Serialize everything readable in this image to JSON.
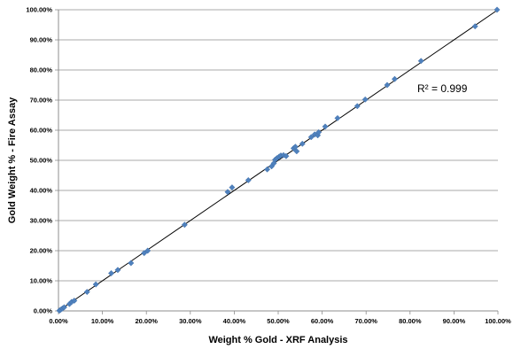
{
  "chart_data": {
    "type": "scatter",
    "title": "",
    "xlabel": "Weight % Gold - XRF Analysis",
    "ylabel": "Gold Weight % - Fire Assay",
    "xlim": [
      0,
      100
    ],
    "ylim": [
      0,
      100
    ],
    "x_ticks": [
      "0.00%",
      "10.00%",
      "20.00%",
      "30.00%",
      "40.00%",
      "50.00%",
      "60.00%",
      "70.00%",
      "80.00%",
      "90.00%",
      "100.00%"
    ],
    "y_ticks": [
      "0.00%",
      "10.00%",
      "20.00%",
      "30.00%",
      "40.00%",
      "50.00%",
      "60.00%",
      "70.00%",
      "80.00%",
      "90.00%",
      "100.00%"
    ],
    "grid": "horizontal",
    "legend": "none",
    "marker_color": "#4f81bd",
    "trendline": {
      "type": "linear",
      "from": [
        0,
        0
      ],
      "to": [
        100,
        100
      ],
      "color": "#000000"
    },
    "annotation": "R² = 0.999",
    "series": [
      {
        "points": [
          [
            0.2,
            0.1
          ],
          [
            0.5,
            0.4
          ],
          [
            0.9,
            0.8
          ],
          [
            1.3,
            1.2
          ],
          [
            2.5,
            2.3
          ],
          [
            3.0,
            3.0
          ],
          [
            3.6,
            3.4
          ],
          [
            6.5,
            6.3
          ],
          [
            8.5,
            8.8
          ],
          [
            12.0,
            12.5
          ],
          [
            13.5,
            13.6
          ],
          [
            16.5,
            15.9
          ],
          [
            19.5,
            19.2
          ],
          [
            20.3,
            20.0
          ],
          [
            28.7,
            28.6
          ],
          [
            38.5,
            39.5
          ],
          [
            39.5,
            41.0
          ],
          [
            43.2,
            43.4
          ],
          [
            47.5,
            47.0
          ],
          [
            48.5,
            48.0
          ],
          [
            49.0,
            49.0
          ],
          [
            49.3,
            50.2
          ],
          [
            49.7,
            50.7
          ],
          [
            50.2,
            51.2
          ],
          [
            50.6,
            51.6
          ],
          [
            51.2,
            51.7
          ],
          [
            51.8,
            51.4
          ],
          [
            53.5,
            54.0
          ],
          [
            53.9,
            54.5
          ],
          [
            54.2,
            53.0
          ],
          [
            55.5,
            55.5
          ],
          [
            57.5,
            57.7
          ],
          [
            58.3,
            58.6
          ],
          [
            59.0,
            58.3
          ],
          [
            59.2,
            59.3
          ],
          [
            60.7,
            61.2
          ],
          [
            63.5,
            64.0
          ],
          [
            68.0,
            68.0
          ],
          [
            69.8,
            70.2
          ],
          [
            74.8,
            75.0
          ],
          [
            76.5,
            77.0
          ],
          [
            82.5,
            83.0
          ],
          [
            94.8,
            94.5
          ],
          [
            99.8,
            100.0
          ]
        ]
      }
    ]
  }
}
